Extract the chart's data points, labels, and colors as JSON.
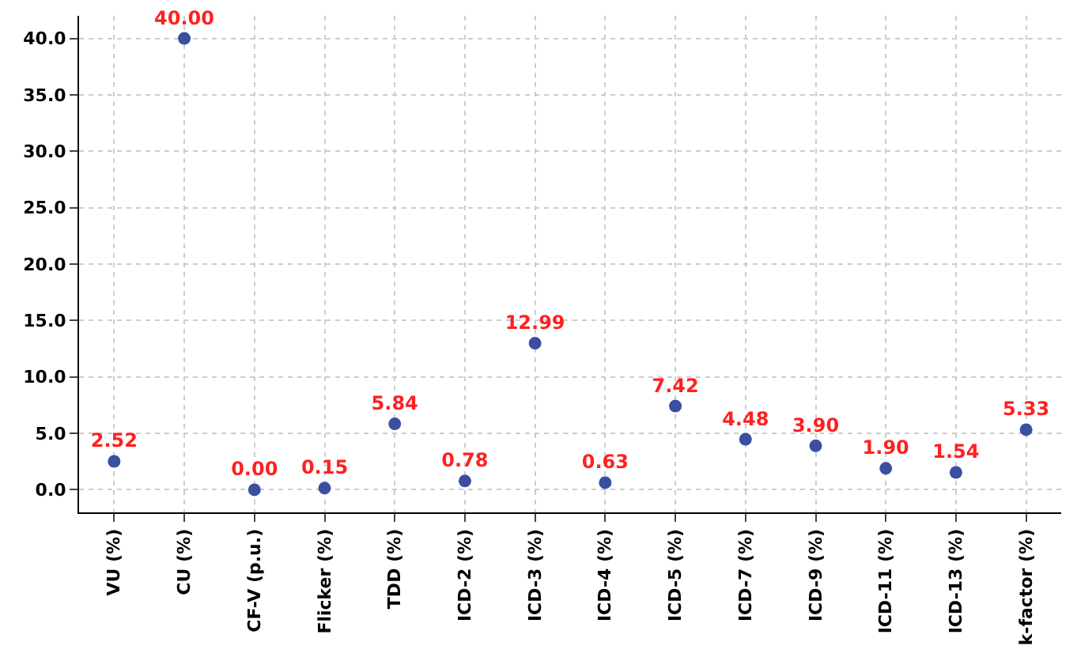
{
  "chart_data": {
    "type": "scatter",
    "categories": [
      "VU (%)",
      "CU (%)",
      "CF-V (p.u.)",
      "Flicker (%)",
      "TDD (%)",
      "ICD-2 (%)",
      "ICD-3 (%)",
      "ICD-4 (%)",
      "ICD-5 (%)",
      "ICD-7 (%)",
      "ICD-9 (%)",
      "ICD-11 (%)",
      "ICD-13 (%)",
      "k-factor (%)"
    ],
    "series": [
      {
        "color": "#3a4fa0",
        "values": [
          2.52,
          40.0,
          0.0,
          0.15,
          5.84,
          0.78,
          12.99,
          0.63,
          7.42,
          4.48,
          3.9,
          1.9,
          1.54,
          5.33
        ],
        "value_labels": [
          "2.52",
          "40.00",
          "0.00",
          "0.15",
          "5.84",
          "0.78",
          "12.99",
          "0.63",
          "7.42",
          "4.48",
          "3.90",
          "1.90",
          "1.54",
          "5.33"
        ]
      }
    ],
    "ylim": [
      -2,
      42
    ],
    "yticks": [
      {
        "value": 0,
        "label": "0.0"
      },
      {
        "value": 5,
        "label": "5.0"
      },
      {
        "value": 10,
        "label": "10.0"
      },
      {
        "value": 15,
        "label": "15.0"
      },
      {
        "value": 20,
        "label": "20.0"
      },
      {
        "value": 25,
        "label": "25.0"
      },
      {
        "value": 30,
        "label": "30.0"
      },
      {
        "value": 35,
        "label": "35.0"
      },
      {
        "value": 40,
        "label": "40.0"
      }
    ],
    "grid": true,
    "marker": "circle"
  }
}
